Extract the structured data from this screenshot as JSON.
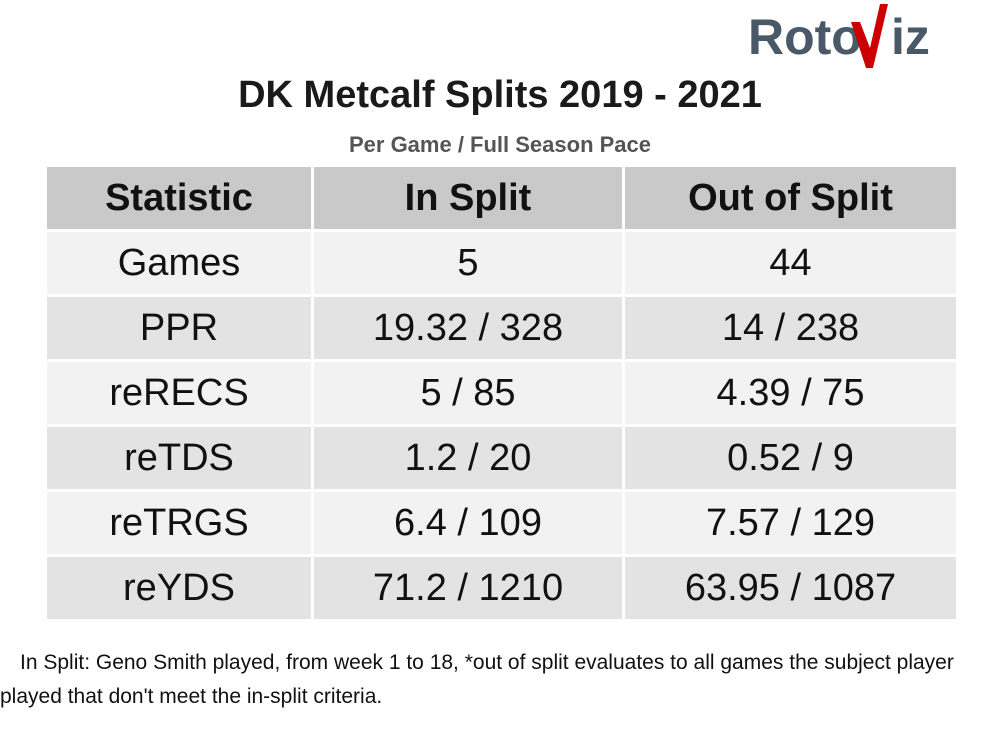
{
  "logo": {
    "text_left": "Roto",
    "text_right": "iz",
    "text_color": "#4a5968",
    "accent_color": "#cc0000",
    "brand": "RotoViz"
  },
  "title": "DK Metcalf Splits 2019 - 2021",
  "subtitle": "Per Game / Full Season Pace",
  "table": {
    "headers": [
      "Statistic",
      "In Split",
      "Out of Split"
    ],
    "rows": [
      [
        "Games",
        "5",
        "44"
      ],
      [
        "PPR",
        "19.32 / 328",
        "14 / 238"
      ],
      [
        "reRECS",
        "5 / 85",
        "4.39 / 75"
      ],
      [
        "reTDS",
        "1.2 / 20",
        "0.52 / 9"
      ],
      [
        "reTRGS",
        "6.4 / 109",
        "7.57 / 129"
      ],
      [
        "reYDS",
        "71.2 / 1210",
        "63.95 / 1087"
      ]
    ],
    "colors": {
      "header_bg": "#c9c9c9",
      "row_light": "#f2f2f2",
      "row_dark": "#e3e3e3"
    }
  },
  "footnote": "In Split: Geno Smith played, from week 1 to 18,  *out of split evaluates to all games the subject player played that don't meet the in-split criteria."
}
